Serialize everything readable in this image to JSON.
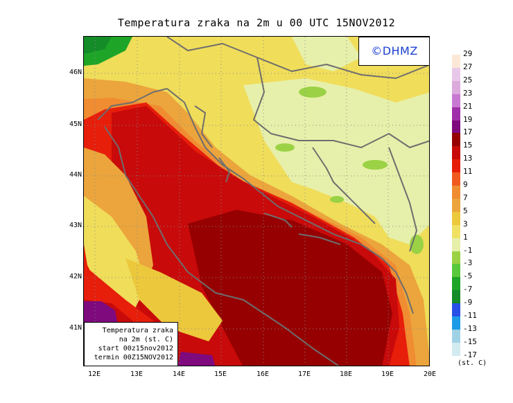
{
  "title": "Temperatura zraka na 2m u 00 UTC 15NOV2012",
  "logo": "©DHMZ",
  "info_box": {
    "line1": "Temperatura zraka",
    "line2": "na 2m (st. C)",
    "line3": "start 00z15nov2012",
    "line4": "termin 00Z15NOV2012"
  },
  "lat_labels": [
    "46N",
    "45N",
    "44N",
    "43N",
    "42N",
    "41N"
  ],
  "lon_labels": [
    "12E",
    "13E",
    "14E",
    "15E",
    "16E",
    "17E",
    "18E",
    "19E",
    "20E"
  ],
  "legend": {
    "unit": "(st. C)",
    "labels": [
      "29",
      "27",
      "25",
      "23",
      "21",
      "19",
      "17",
      "15",
      "13",
      "11",
      "9",
      "7",
      "5",
      "3",
      "1",
      "-1",
      "-3",
      "-5",
      "-7",
      "-9",
      "-11",
      "-13",
      "-15",
      "-17"
    ],
    "colors": [
      "#fce8d6",
      "#e8c8e8",
      "#dcaadc",
      "#c87ad2",
      "#a030aa",
      "#7e0a7e",
      "#960000",
      "#c80a0a",
      "#e61e0a",
      "#f05a1e",
      "#f08c32",
      "#eba53c",
      "#ecc83c",
      "#f0e164",
      "#e6f0aa",
      "#9bd245",
      "#5ac83c",
      "#1ea528",
      "#148c28",
      "#2850e6",
      "#1e9be6",
      "#a0d2e6",
      "#d2ebf0",
      "#ebf8f8"
    ]
  }
}
